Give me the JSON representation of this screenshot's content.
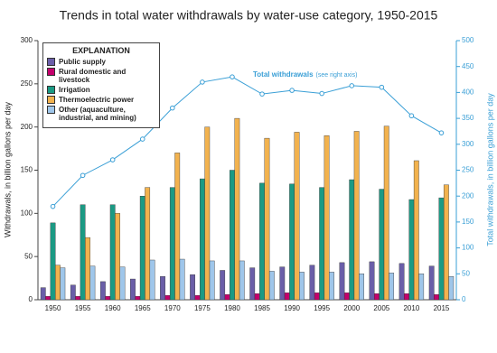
{
  "chart_data": {
    "type": "bar",
    "title": "Trends in total water withdrawals by water-use category, 1950-2015",
    "y_label": "Withdrawals, in billion gallons per day",
    "y2_label": "Total withdrawals, in billion gallons per day",
    "legend_title": "EXPLANATION",
    "annotation": {
      "text": "Total withdrawals",
      "note": "(see right axis)"
    },
    "categories": [
      "1950",
      "1955",
      "1960",
      "1965",
      "1970",
      "1975",
      "1980",
      "1985",
      "1990",
      "1995",
      "2000",
      "2005",
      "2010",
      "2015"
    ],
    "series": [
      {
        "name": "Public supply",
        "color": "#6a5ea8",
        "values": [
          14,
          17,
          21,
          24,
          27,
          29,
          34,
          37,
          38,
          40,
          43,
          44,
          42,
          39
        ]
      },
      {
        "name": "Rural domestic and livestock",
        "color": "#c4006c",
        "values": [
          4,
          4,
          4,
          4,
          5,
          5,
          6,
          7,
          8,
          8,
          8,
          7,
          7,
          6
        ]
      },
      {
        "name": "Irrigation",
        "color": "#1b9a84",
        "values": [
          89,
          110,
          110,
          120,
          130,
          140,
          150,
          135,
          134,
          130,
          139,
          128,
          116,
          118
        ]
      },
      {
        "name": "Thermoelectric power",
        "color": "#f2b24e",
        "values": [
          40,
          72,
          100,
          130,
          170,
          200,
          210,
          187,
          194,
          190,
          195,
          201,
          161,
          133
        ]
      },
      {
        "name": "Other (aquaculture, industrial, and mining)",
        "color": "#9fc6ea",
        "values": [
          37,
          39,
          38,
          46,
          47,
          45,
          45,
          33,
          32,
          32,
          30,
          31,
          30,
          27
        ]
      },
      {
        "name": "Total withdrawals",
        "type": "line",
        "axis": "y2",
        "color": "#3a9fd6",
        "values": [
          180,
          240,
          270,
          310,
          370,
          420,
          430,
          397,
          404,
          398,
          413,
          410,
          355,
          322
        ]
      }
    ],
    "ylim": [
      0,
      300
    ],
    "yticks": [
      0,
      50,
      100,
      150,
      200,
      250,
      300
    ],
    "y2lim": [
      0,
      500
    ],
    "y2ticks": [
      0,
      50,
      100,
      150,
      200,
      250,
      300,
      350,
      400,
      450,
      500
    ]
  }
}
